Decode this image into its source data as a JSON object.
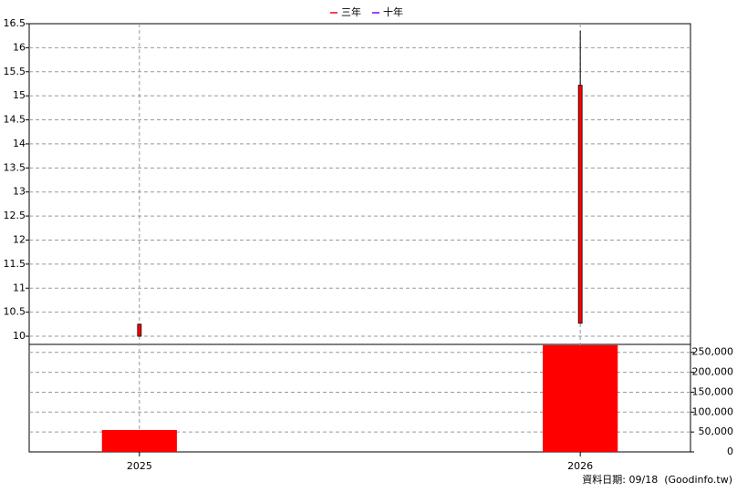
{
  "chart_data": {
    "type": "candlestick",
    "categories": [
      "2025",
      "2026"
    ],
    "open": [
      10.0,
      10.27
    ],
    "high": [
      10.25,
      16.35
    ],
    "low": [
      10.0,
      10.27
    ],
    "close": [
      10.25,
      15.22
    ],
    "candle_color": "#ff0000",
    "volume": [
      55000,
      268000
    ],
    "volume_color": "#ff0000",
    "ylim": [
      9.83,
      16.5
    ],
    "yticks": [
      10,
      10.5,
      11,
      11.5,
      12,
      12.5,
      13,
      13.5,
      14,
      14.5,
      15,
      15.5,
      16,
      16.5
    ],
    "y2lim": [
      0,
      270000
    ],
    "y2ticks": [
      0,
      {
        "value": 50000,
        "label": "50,000"
      },
      {
        "value": 100000,
        "label": "100,000"
      },
      {
        "value": 150000,
        "label": "150,000"
      },
      {
        "value": 200000,
        "label": "200,000"
      },
      {
        "value": 250000,
        "label": "250,000"
      }
    ],
    "grid": true,
    "legend": [
      {
        "name": "三年",
        "color": "#ff0000"
      },
      {
        "name": "十年",
        "color": "#8000ff"
      }
    ],
    "note": "資料日期: 09/18  (Goodinfo.tw)"
  }
}
